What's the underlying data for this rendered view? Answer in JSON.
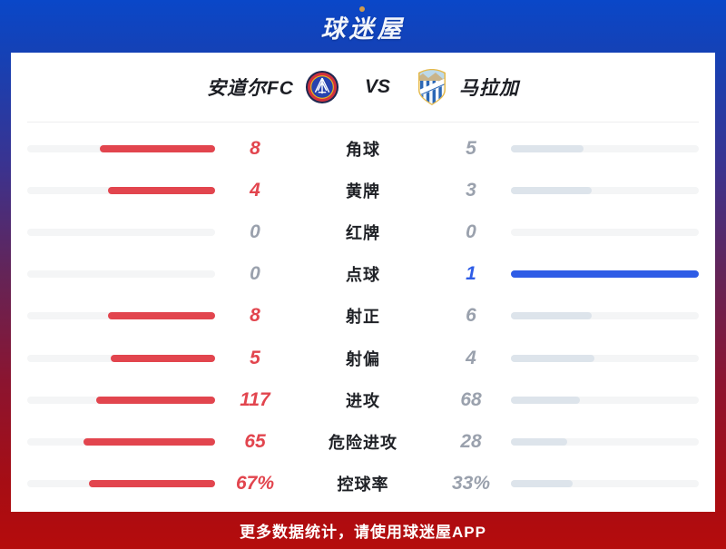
{
  "logo": {
    "text": "球迷屋"
  },
  "header": {
    "home_team": "安道尔FC",
    "vs": "VS",
    "away_team": "马拉加"
  },
  "colors": {
    "home_accent": "#e2454e",
    "away_accent": "#2e5ce6",
    "home_bar": "#e2454e",
    "away_bar": "#dde4eb",
    "away_bar_highlight": "#2e5ce6",
    "muted_value": "#9aa1ad",
    "bar_track": "#f4f5f6"
  },
  "chart_data": {
    "type": "bar",
    "title": "安道尔FC VS 马拉加",
    "categories": [
      "角球",
      "黄牌",
      "红牌",
      "点球",
      "射正",
      "射偏",
      "进攻",
      "危险进攻",
      "控球率"
    ],
    "series": [
      {
        "name": "安道尔FC",
        "values": [
          "8",
          "4",
          "0",
          "0",
          "8",
          "5",
          "117",
          "65",
          "67%"
        ]
      },
      {
        "name": "马拉加",
        "values": [
          "5",
          "3",
          "0",
          "1",
          "6",
          "4",
          "68",
          "28",
          "33%"
        ]
      }
    ]
  },
  "stats": [
    {
      "label": "角球",
      "home": "8",
      "away": "5",
      "home_fill": 61.5,
      "away_fill": 38.5,
      "home_leads": true,
      "away_leads": false
    },
    {
      "label": "黄牌",
      "home": "4",
      "away": "3",
      "home_fill": 57.1,
      "away_fill": 42.9,
      "home_leads": true,
      "away_leads": false
    },
    {
      "label": "红牌",
      "home": "0",
      "away": "0",
      "home_fill": 0,
      "away_fill": 0,
      "home_leads": false,
      "away_leads": false
    },
    {
      "label": "点球",
      "home": "0",
      "away": "1",
      "home_fill": 0,
      "away_fill": 100,
      "home_leads": false,
      "away_leads": true
    },
    {
      "label": "射正",
      "home": "8",
      "away": "6",
      "home_fill": 57.1,
      "away_fill": 42.9,
      "home_leads": true,
      "away_leads": false
    },
    {
      "label": "射偏",
      "home": "5",
      "away": "4",
      "home_fill": 55.6,
      "away_fill": 44.4,
      "home_leads": true,
      "away_leads": false
    },
    {
      "label": "进攻",
      "home": "117",
      "away": "68",
      "home_fill": 63.2,
      "away_fill": 36.8,
      "home_leads": true,
      "away_leads": false
    },
    {
      "label": "危险进攻",
      "home": "65",
      "away": "28",
      "home_fill": 69.9,
      "away_fill": 30.1,
      "home_leads": true,
      "away_leads": false
    },
    {
      "label": "控球率",
      "home": "67%",
      "away": "33%",
      "home_fill": 67,
      "away_fill": 33,
      "home_leads": true,
      "away_leads": false
    }
  ],
  "footer": {
    "text": "更多数据统计，请使用球迷屋APP"
  }
}
